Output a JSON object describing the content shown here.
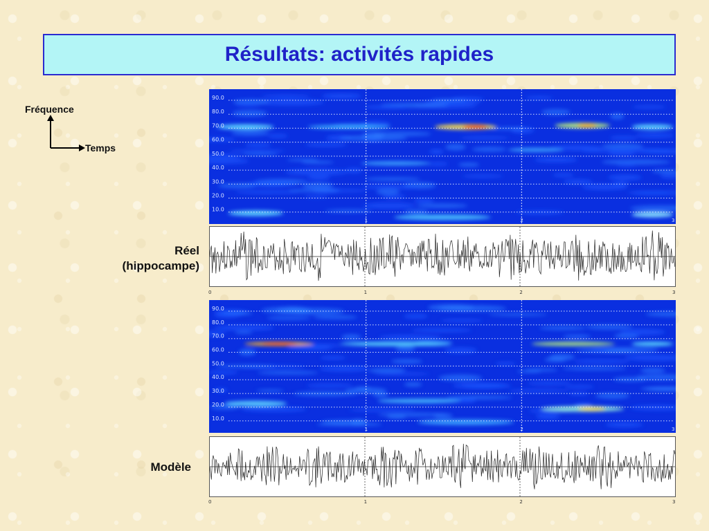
{
  "slide": {
    "title": "Résultats: activités rapides"
  },
  "axes_legend": {
    "y_label": "Fréquence",
    "x_label": "Temps"
  },
  "panels": {
    "real_label_line1": "Réel",
    "real_label_line2": "(hippocampe)",
    "model_label": "Modèle"
  },
  "spectrogram": {
    "freq_ticks": [
      "90.0",
      "80.0",
      "70.0",
      "60.0",
      "50.0",
      "40.0",
      "30.0",
      "20.0",
      "10.0"
    ],
    "time_ticks": [
      "1",
      "2",
      "3"
    ]
  },
  "waveform": {
    "time_ticks": [
      "0",
      "1",
      "2",
      "3"
    ]
  },
  "colors": {
    "title_bg": "#b3f5f6",
    "title_text": "#1f22c8",
    "spectrogram_bg": "#0a2fe0"
  }
}
